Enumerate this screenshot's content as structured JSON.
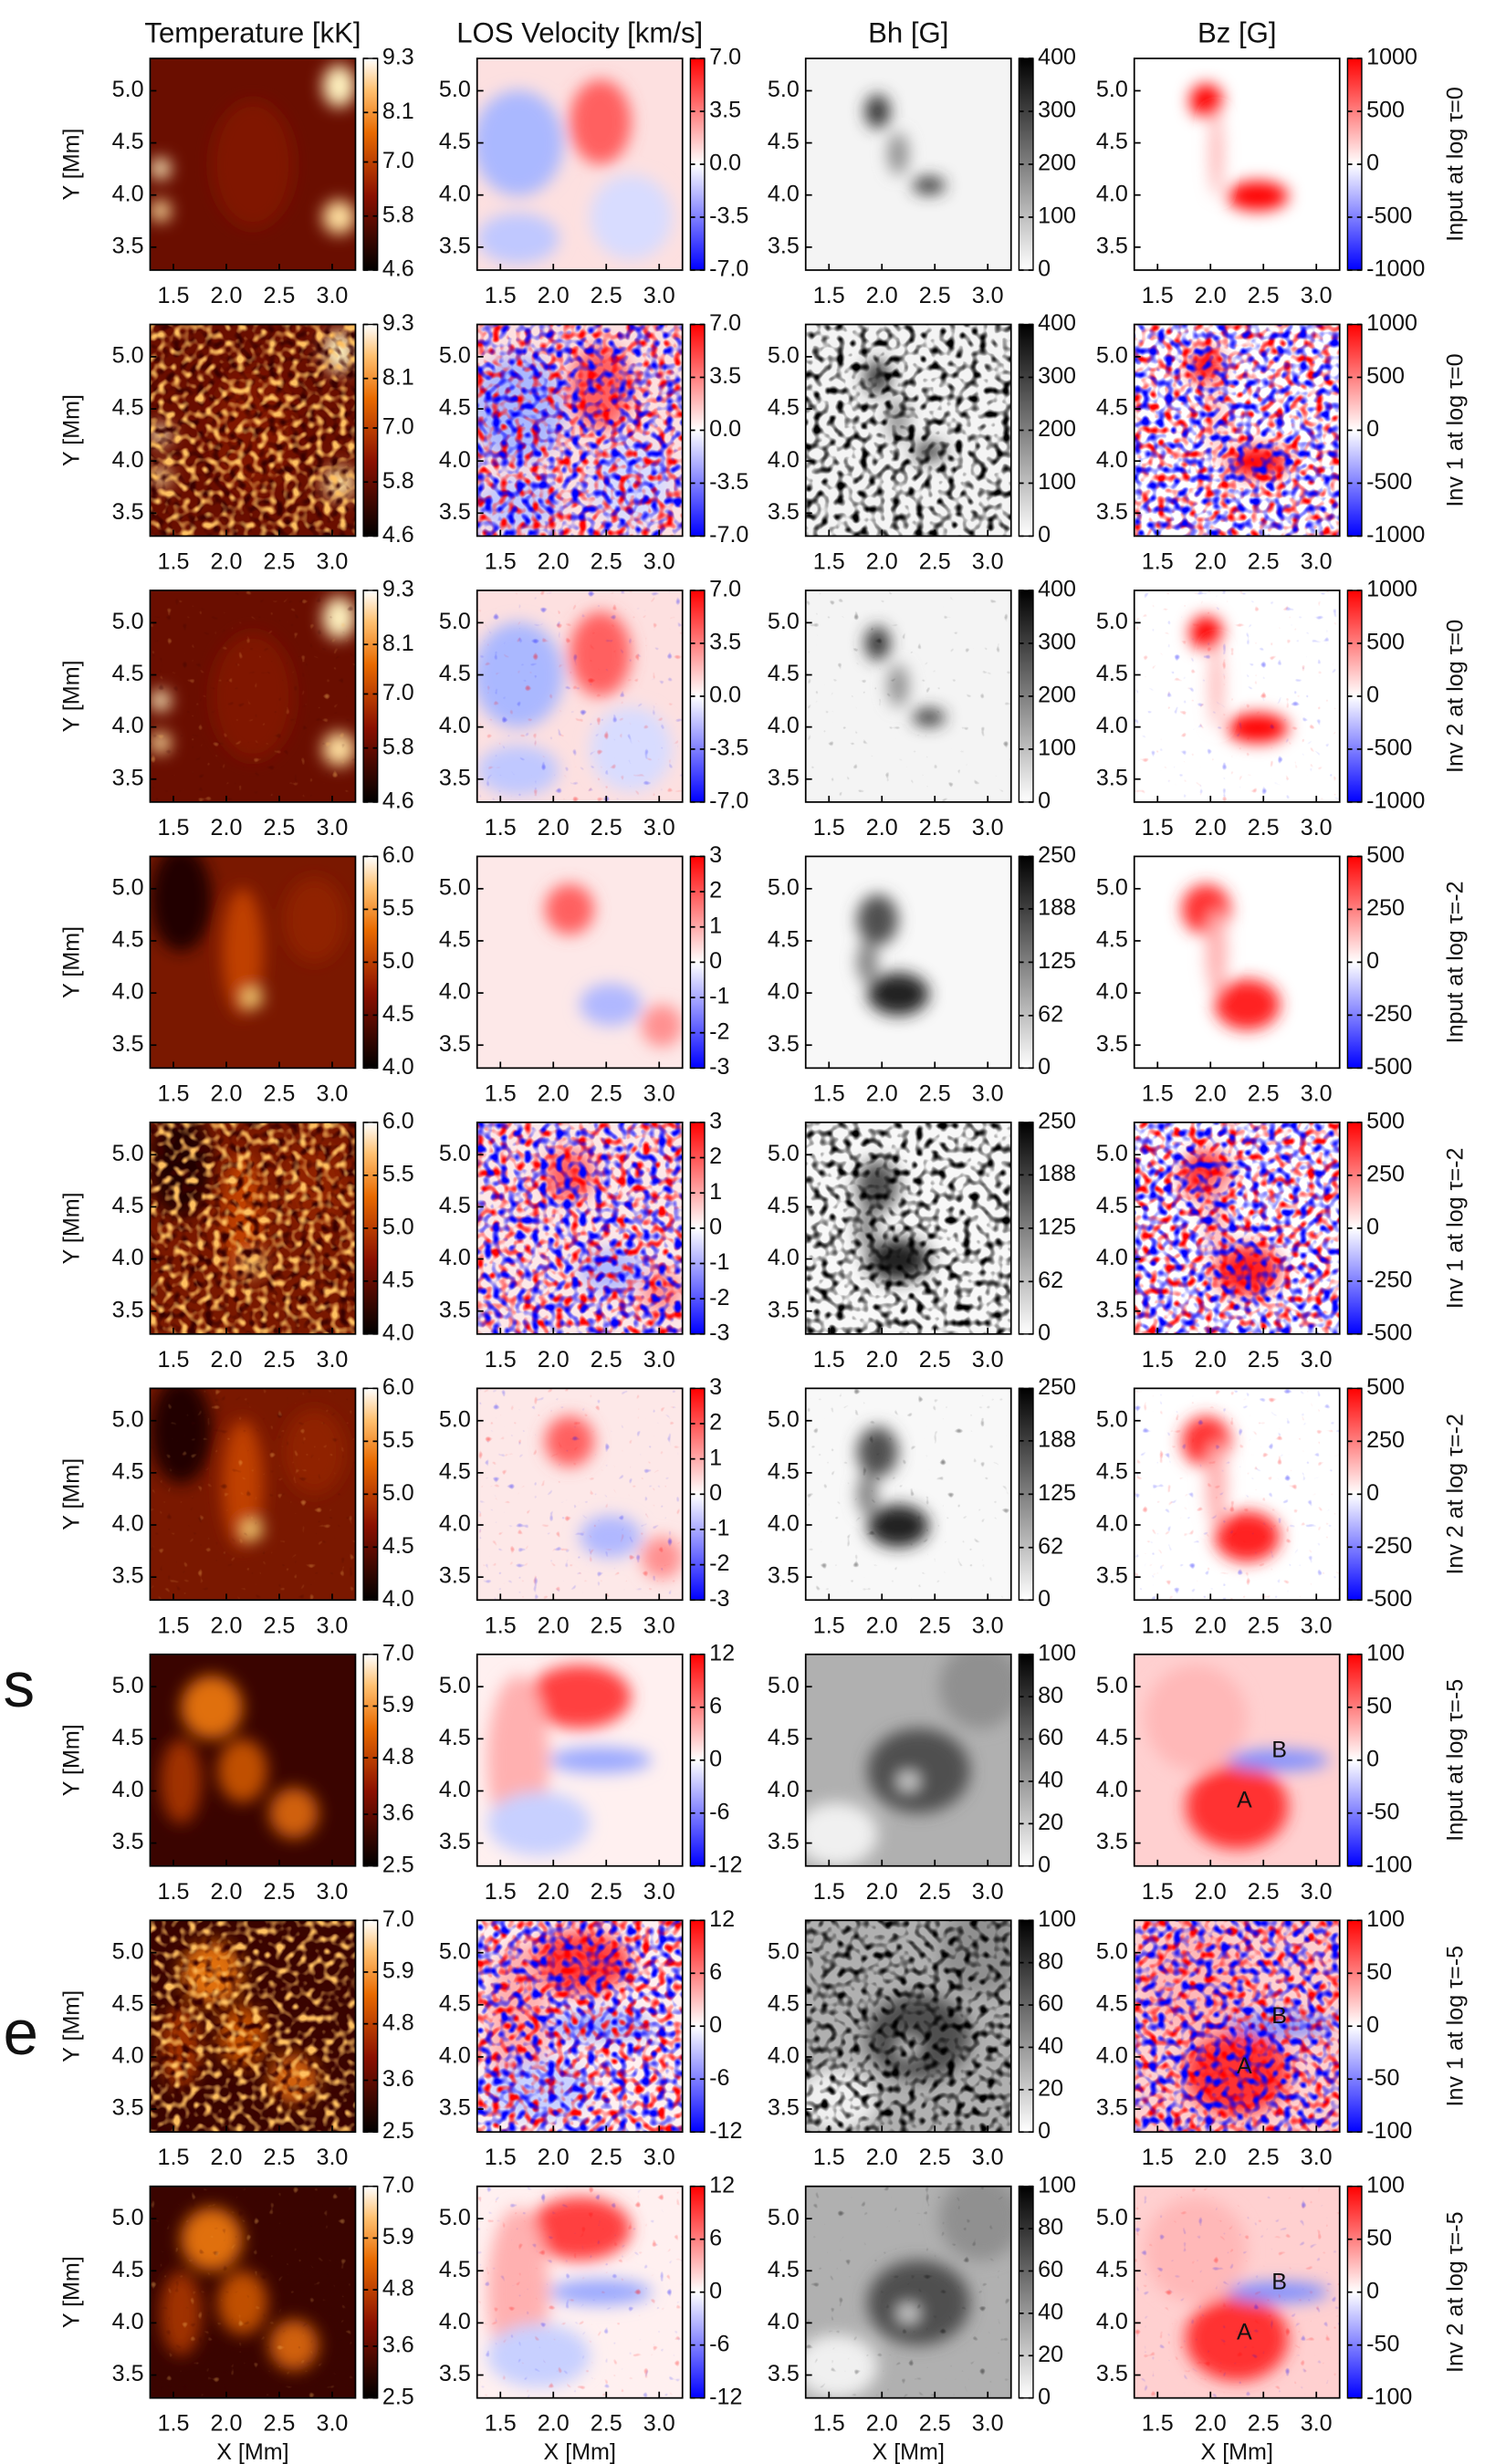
{
  "figure": {
    "columns": [
      "Temperature [kK]",
      "LOS Velocity [km/s]",
      "Bh [G]",
      "Bz [G]"
    ],
    "y_label": "Y [Mm]",
    "x_label": "X [Mm]",
    "xlim": [
      1.28,
      3.22
    ],
    "ylim": [
      3.28,
      5.31
    ],
    "xticks": [
      1.5,
      {
        "value": 2.0,
        "label": "2.0"
      },
      2.5,
      {
        "value": 3.0,
        "label": "3.0"
      }
    ],
    "yticks": [
      3.5,
      {
        "value": 4.0,
        "label": "4.0"
      },
      4.5,
      {
        "value": 5.0,
        "label": "5.0"
      }
    ],
    "groups": [
      {
        "rows": [
          "Input at log τ=0",
          "Inv 1 at log τ=0",
          "Inv 2 at log τ=0"
        ],
        "colorbars": [
          {
            "lim": [
              4.6,
              9.3
            ],
            "ticks": [
              9.3,
              8.1,
              {
                "value": 7.0,
                "label": "7.0"
              },
              5.8,
              4.6
            ]
          },
          {
            "lim": [
              -7,
              7
            ],
            "ticks": [
              {
                "value": 7.0,
                "label": "7.0"
              },
              3.5,
              {
                "value": 0.0,
                "label": "0.0"
              },
              -3.5,
              {
                "value": -7.0,
                "label": "-7.0"
              }
            ]
          },
          {
            "lim": [
              0,
              400
            ],
            "ticks": [
              400,
              300,
              200,
              100,
              0
            ]
          },
          {
            "lim": [
              -1000,
              1000
            ],
            "ticks": [
              1000,
              500,
              0,
              -500,
              -1000
            ]
          }
        ]
      },
      {
        "rows": [
          "Input at log τ=-2",
          "Inv 1 at log τ=-2",
          "Inv 2 at log τ=-2"
        ],
        "colorbars": [
          {
            "lim": [
              4.0,
              6.0
            ],
            "ticks": [
              {
                "value": 6.0,
                "label": "6.0"
              },
              5.5,
              {
                "value": 5.0,
                "label": "5.0"
              },
              4.5,
              {
                "value": 4.0,
                "label": "4.0"
              }
            ]
          },
          {
            "lim": [
              -3,
              3
            ],
            "ticks": [
              3,
              2,
              1,
              0,
              -1,
              -2,
              -3
            ]
          },
          {
            "lim": [
              0,
              250
            ],
            "ticks": [
              250,
              188,
              125,
              62,
              0
            ]
          },
          {
            "lim": [
              -500,
              500
            ],
            "ticks": [
              500,
              250,
              0,
              -250,
              -500
            ]
          }
        ]
      },
      {
        "rows": [
          "Input at log τ=-5",
          "Inv 1 at log τ=-5",
          "Inv 2 at log τ=-5"
        ],
        "colorbars": [
          {
            "lim": [
              2.5,
              7.0
            ],
            "ticks": [
              {
                "value": 7.0,
                "label": "7.0"
              },
              5.9,
              4.8,
              3.6,
              2.5
            ]
          },
          {
            "lim": [
              -12,
              12
            ],
            "ticks": [
              12,
              6,
              0,
              -6,
              -12
            ]
          },
          {
            "lim": [
              0,
              100
            ],
            "ticks": [
              100,
              80,
              60,
              40,
              20,
              0
            ]
          },
          {
            "lim": [
              -100,
              100
            ],
            "ticks": [
              100,
              50,
              0,
              -50,
              -100
            ]
          }
        ],
        "annotations": [
          {
            "text": "A",
            "x": 2.32,
            "y": 3.9
          },
          {
            "text": "B",
            "x": 2.65,
            "y": 4.38
          }
        ]
      }
    ],
    "margin_fragments": [
      "s",
      "e"
    ]
  }
}
